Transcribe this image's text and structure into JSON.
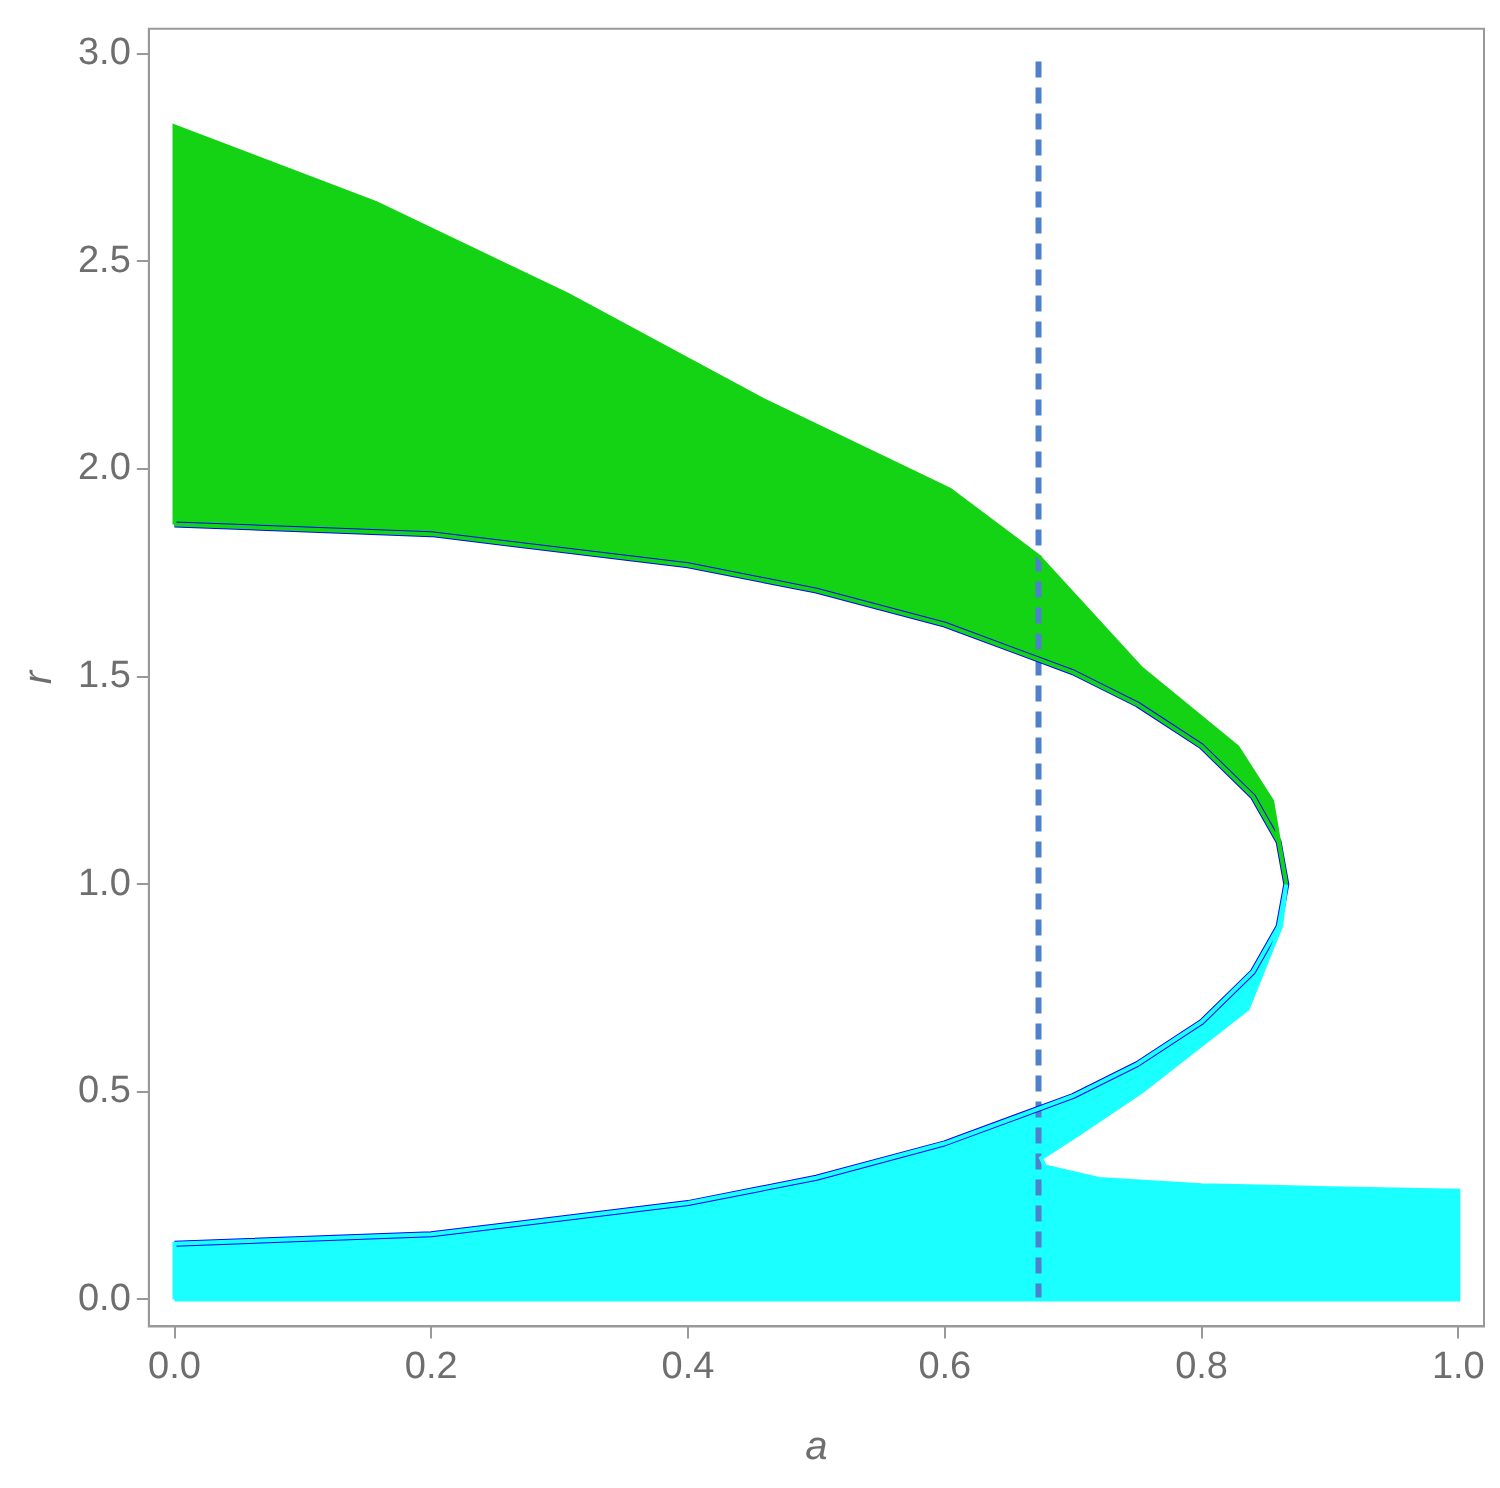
{
  "chart_data": {
    "type": "area",
    "xlabel": "a",
    "ylabel": "r",
    "xlim": [
      -0.02,
      1.02
    ],
    "ylim": [
      -0.065,
      3.06
    ],
    "xticks": [
      {
        "value": 0,
        "label": "0.0"
      },
      0.2,
      0.4,
      0.6,
      0.8,
      {
        "value": 1,
        "label": "1.0"
      }
    ],
    "yticks": [
      {
        "value": 0,
        "label": "0.0"
      },
      0.5,
      {
        "value": 1,
        "label": "1.0"
      },
      1.5,
      {
        "value": 2,
        "label": "2.0"
      },
      2.5,
      {
        "value": 3,
        "label": "3.0"
      }
    ],
    "grid": false,
    "legend": false,
    "marker": "none",
    "ref_lines": [
      {
        "axis": "x",
        "value": 0.673,
        "color": "#4f80cc",
        "line_style": "dashed"
      }
    ],
    "series": [
      {
        "color": "#14d214",
        "x": [
          0,
          0,
          0.157,
          0.306,
          0.456,
          0.604,
          0.673,
          0.753,
          0.828,
          0.855,
          0.866,
          0.86,
          0.84,
          0.8,
          0.75,
          0.7,
          0.6,
          0.5,
          0.4,
          0.2,
          0
        ],
        "values": [
          1.866,
          2.825,
          2.64,
          2.42,
          2.17,
          1.95,
          1.79,
          1.52,
          1.33,
          1.2,
          1.0,
          1.102,
          1.211,
          1.332,
          1.433,
          1.51,
          1.625,
          1.707,
          1.768,
          1.843,
          1.866
        ]
      },
      {
        "color": "#1affff",
        "x": [
          0,
          0,
          0.2,
          0.4,
          0.5,
          0.6,
          0.7,
          0.75,
          0.8,
          0.84,
          0.86,
          0.866,
          0.862,
          0.836,
          0.753,
          0.705,
          0.675,
          0.678,
          0.72,
          0.8,
          0.9,
          1.0,
          1.0,
          0
        ],
        "values": [
          0,
          0.134,
          0.157,
          0.232,
          0.293,
          0.376,
          0.49,
          0.567,
          0.668,
          0.789,
          0.898,
          1.0,
          0.9,
          0.7,
          0.5,
          0.4,
          0.34,
          0.32,
          0.29,
          0.275,
          0.268,
          0.262,
          0,
          0
        ]
      },
      {
        "type": "line",
        "color": "#0000ff",
        "x": [
          0,
          0.2,
          0.4,
          0.5,
          0.6,
          0.7,
          0.75,
          0.8,
          0.84,
          0.86,
          0.866,
          0.86,
          0.84,
          0.8,
          0.75,
          0.7,
          0.6,
          0.5,
          0.4,
          0.2,
          0
        ],
        "values": [
          0.134,
          0.157,
          0.232,
          0.293,
          0.376,
          0.49,
          0.567,
          0.668,
          0.789,
          0.898,
          1.0,
          1.102,
          1.211,
          1.332,
          1.433,
          1.51,
          1.625,
          1.707,
          1.768,
          1.843,
          1.866
        ]
      }
    ]
  }
}
